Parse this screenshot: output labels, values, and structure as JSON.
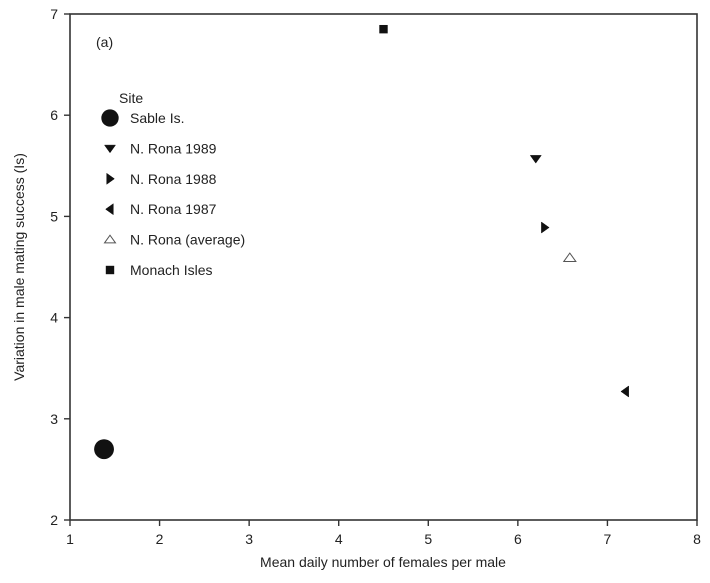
{
  "chart_data": {
    "type": "scatter",
    "panel_label": "(a)",
    "xlabel": "Mean daily number of females per male",
    "ylabel": "Variation in male mating success (Is)",
    "xlim": [
      1,
      8
    ],
    "ylim": [
      2,
      7
    ],
    "xticks": [
      "1",
      "2",
      "3",
      "4",
      "5",
      "6",
      "7",
      "8"
    ],
    "yticks": [
      "2",
      "3",
      "4",
      "5",
      "6",
      "7"
    ],
    "grid": false,
    "legend": {
      "title": "Site",
      "placement": "upper-left"
    },
    "series": [
      {
        "name": "Sable Is.",
        "marker": "circle",
        "points": [
          {
            "x": 1.38,
            "y": 2.7
          }
        ]
      },
      {
        "name": "N. Rona 1989",
        "marker": "triangle-down",
        "points": [
          {
            "x": 6.2,
            "y": 5.57
          }
        ]
      },
      {
        "name": "N. Rona 1988",
        "marker": "triangle-right",
        "points": [
          {
            "x": 6.3,
            "y": 4.89
          }
        ]
      },
      {
        "name": "N. Rona 1987",
        "marker": "triangle-left",
        "points": [
          {
            "x": 7.2,
            "y": 3.27
          }
        ]
      },
      {
        "name": "N. Rona (average)",
        "marker": "triangle-up-open",
        "points": [
          {
            "x": 6.58,
            "y": 4.59
          }
        ]
      },
      {
        "name": "Monach Isles",
        "marker": "square",
        "points": [
          {
            "x": 4.5,
            "y": 6.85
          }
        ]
      }
    ]
  }
}
